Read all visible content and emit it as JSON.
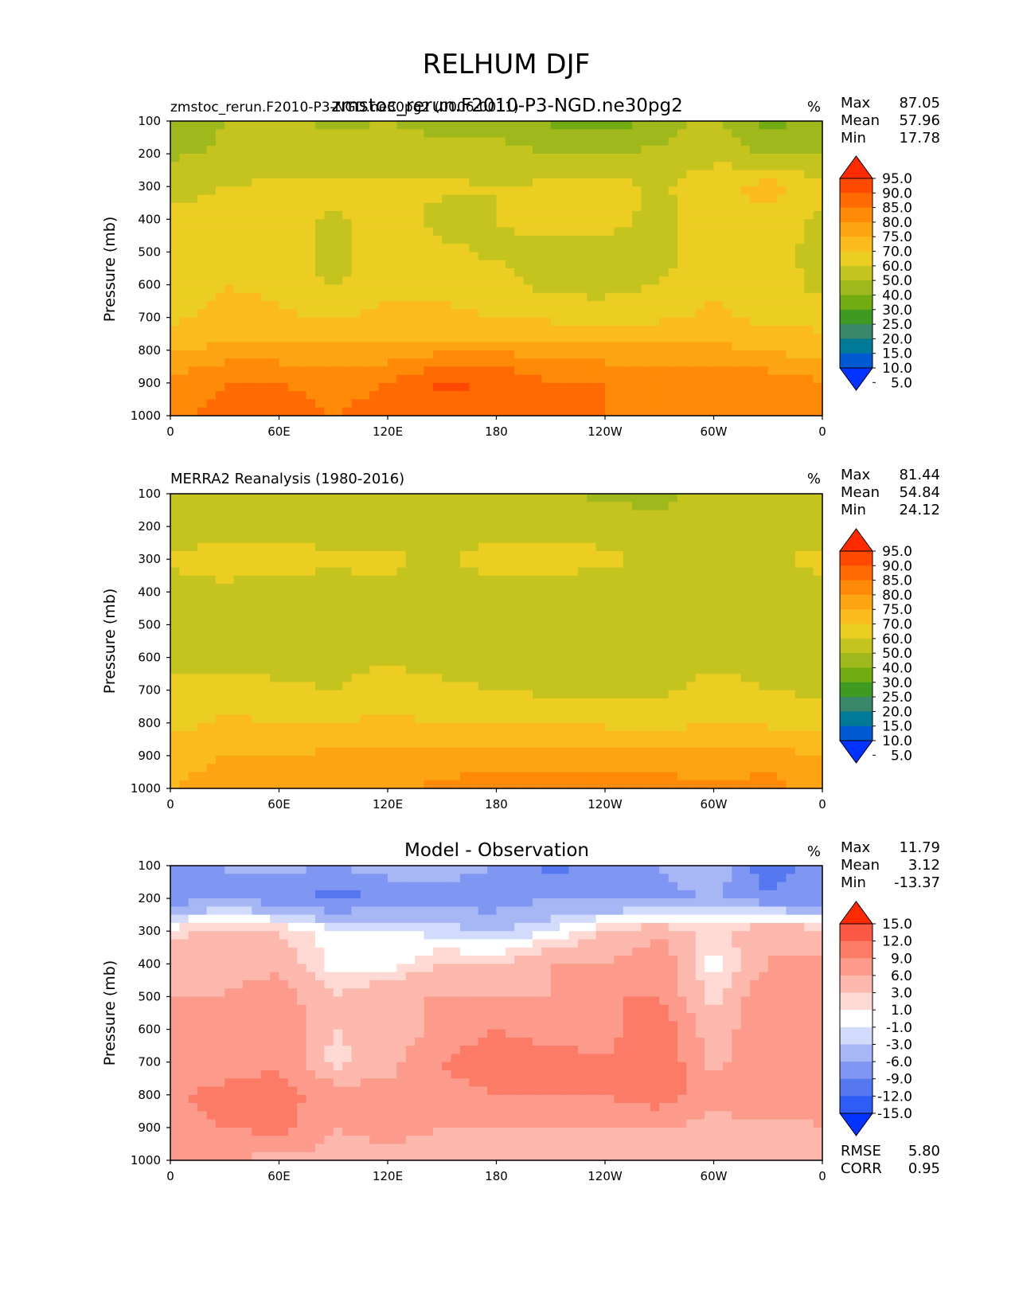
{
  "figure": {
    "title": "RELHUM DJF"
  },
  "colors": {
    "abs_levels": [
      "#0033ff",
      "#0059d1",
      "#007a96",
      "#38876a",
      "#3f9a22",
      "#72ac12",
      "#9fb81c",
      "#c5c41e",
      "#eccd22",
      "#fcbb1d",
      "#fda412",
      "#ff8a07",
      "#ff6a02",
      "#ff4800",
      "#ff2a00"
    ],
    "diff_levels": [
      "#0033ff",
      "#2f5cf6",
      "#5578f0",
      "#7f97f2",
      "#a7b7f6",
      "#d2dbfb",
      "#ffffff",
      "#ffd9d4",
      "#fdb8ad",
      "#fc9b8c",
      "#fc7b66",
      "#fa5a45",
      "#ff2a00"
    ]
  },
  "chart_data": [
    {
      "type": "heatmap",
      "panel_id": "test",
      "title_left": "zmstoc_rerun.F2010-P3-NGD.ne30pg2 (0006-0011)",
      "title_center": "zmstoc_rerun.F2010-P3-NGD.ne30pg2",
      "units": "%",
      "stats": {
        "max": "87.05",
        "mean": "57.96",
        "min": "17.78"
      },
      "xlabel": "",
      "ylabel": "Pressure (mb)",
      "xlim": [
        0,
        360
      ],
      "ylim": [
        1000,
        100
      ],
      "x_ticks": [
        "0",
        "60E",
        "120E",
        "180",
        "120W",
        "60W",
        "0"
      ],
      "y_ticks": [
        "100",
        "200",
        "300",
        "400",
        "500",
        "600",
        "700",
        "800",
        "900",
        "1000"
      ],
      "colorbar": {
        "extend": "both",
        "levels": [
          "95.0",
          "90.0",
          "85.0",
          "80.0",
          "75.0",
          "70.0",
          "60.0",
          "50.0",
          "40.0",
          "30.0",
          "25.0",
          "20.0",
          "15.0",
          "10.0",
          "5.0"
        ]
      },
      "pressure": [
        100,
        200,
        300,
        400,
        500,
        600,
        700,
        800,
        900,
        1000
      ],
      "longitude": [
        0,
        30,
        60,
        90,
        120,
        150,
        180,
        210,
        240,
        270,
        300,
        330,
        360
      ],
      "values": [
        [
          32,
          40,
          42,
          38,
          40,
          36,
          36,
          28,
          24,
          34,
          44,
          24,
          36
        ],
        [
          38,
          42,
          44,
          44,
          44,
          44,
          44,
          40,
          40,
          42,
          46,
          40,
          40
        ],
        [
          46,
          50,
          52,
          53,
          52,
          52,
          50,
          52,
          54,
          48,
          58,
          64,
          52
        ],
        [
          52,
          55,
          56,
          48,
          55,
          46,
          50,
          55,
          55,
          46,
          56,
          56,
          48
        ],
        [
          50,
          56,
          56,
          46,
          56,
          52,
          48,
          46,
          44,
          46,
          56,
          55,
          46
        ],
        [
          52,
          60,
          58,
          48,
          58,
          58,
          55,
          46,
          46,
          50,
          58,
          56,
          46
        ],
        [
          58,
          63,
          62,
          58,
          63,
          62,
          60,
          58,
          56,
          58,
          62,
          57,
          56
        ],
        [
          70,
          72,
          72,
          72,
          72,
          74,
          74,
          73,
          72,
          72,
          72,
          70,
          66
        ],
        [
          76,
          80,
          80,
          78,
          80,
          86,
          85,
          80,
          80,
          78,
          80,
          78,
          76
        ],
        [
          78,
          82,
          83,
          80,
          82,
          82,
          82,
          80,
          80,
          78,
          80,
          78,
          76
        ]
      ]
    },
    {
      "type": "heatmap",
      "panel_id": "ref",
      "title_left": "MERRA2 Reanalysis (1980-2016)",
      "title_center": "",
      "units": "%",
      "stats": {
        "max": "81.44",
        "mean": "54.84",
        "min": "24.12"
      },
      "xlabel": "",
      "ylabel": "Pressure (mb)",
      "xlim": [
        0,
        360
      ],
      "ylim": [
        1000,
        100
      ],
      "x_ticks": [
        "0",
        "60E",
        "120E",
        "180",
        "120W",
        "60W",
        "0"
      ],
      "y_ticks": [
        "100",
        "200",
        "300",
        "400",
        "500",
        "600",
        "700",
        "800",
        "900",
        "1000"
      ],
      "colorbar": {
        "extend": "both",
        "levels": [
          "95.0",
          "90.0",
          "85.0",
          "80.0",
          "75.0",
          "70.0",
          "60.0",
          "50.0",
          "40.0",
          "30.0",
          "25.0",
          "20.0",
          "15.0",
          "10.0",
          "5.0"
        ]
      },
      "pressure": [
        100,
        200,
        300,
        400,
        500,
        600,
        700,
        800,
        900,
        1000
      ],
      "longitude": [
        0,
        30,
        60,
        90,
        120,
        150,
        180,
        210,
        240,
        270,
        300,
        330,
        360
      ],
      "values": [
        [
          42,
          44,
          44,
          44,
          44,
          44,
          44,
          42,
          38,
          36,
          44,
          44,
          42
        ],
        [
          44,
          46,
          46,
          46,
          46,
          46,
          46,
          46,
          46,
          44,
          46,
          46,
          46
        ],
        [
          52,
          54,
          53,
          52,
          52,
          48,
          55,
          54,
          52,
          48,
          50,
          49,
          52
        ],
        [
          46,
          48,
          46,
          46,
          48,
          46,
          46,
          46,
          44,
          43,
          50,
          46,
          48
        ],
        [
          45,
          44,
          44,
          44,
          47,
          46,
          45,
          46,
          40,
          40,
          47,
          44,
          44
        ],
        [
          48,
          44,
          46,
          46,
          48,
          46,
          44,
          42,
          42,
          42,
          48,
          44,
          46
        ],
        [
          52,
          56,
          52,
          50,
          56,
          52,
          50,
          48,
          48,
          48,
          54,
          50,
          48
        ],
        [
          56,
          62,
          60,
          60,
          62,
          60,
          60,
          58,
          58,
          56,
          60,
          58,
          56
        ],
        [
          66,
          70,
          70,
          72,
          72,
          73,
          74,
          74,
          74,
          74,
          72,
          74,
          70
        ],
        [
          70,
          74,
          74,
          74,
          74,
          76,
          76,
          76,
          76,
          76,
          76,
          76,
          74
        ]
      ]
    },
    {
      "type": "heatmap",
      "panel_id": "diff",
      "title_left": "",
      "title_center": "Model - Observation",
      "units": "%",
      "stats": {
        "max": "11.79",
        "mean": "3.12",
        "min": "-13.37"
      },
      "metrics": {
        "rmse": "5.80",
        "corr": "0.95"
      },
      "xlabel": "",
      "ylabel": "Pressure (mb)",
      "xlim": [
        0,
        360
      ],
      "ylim": [
        1000,
        100
      ],
      "x_ticks": [
        "0",
        "60E",
        "120E",
        "180",
        "120W",
        "60W",
        "0"
      ],
      "y_ticks": [
        "100",
        "200",
        "300",
        "400",
        "500",
        "600",
        "700",
        "800",
        "900",
        "1000"
      ],
      "colorbar": {
        "extend": "both",
        "levels": [
          "15.0",
          "12.0",
          "9.0",
          "6.0",
          "3.0",
          "1.0",
          "-1.0",
          "-3.0",
          "-6.0",
          "-9.0",
          "-12.0",
          "-15.0"
        ]
      },
      "pressure": [
        100,
        200,
        300,
        400,
        500,
        600,
        700,
        800,
        900,
        1000
      ],
      "longitude": [
        0,
        30,
        60,
        90,
        120,
        150,
        180,
        210,
        240,
        270,
        300,
        330,
        360
      ],
      "values": [
        [
          -7,
          -6,
          -5,
          -6,
          -4,
          -4,
          -6,
          -10,
          -8,
          -6,
          -3,
          -12,
          -6
        ],
        [
          -8,
          -6,
          -8,
          -10,
          -9,
          -8,
          -8,
          -6,
          -7,
          -7,
          -6,
          -8,
          -8
        ],
        [
          2,
          4,
          3,
          0,
          0,
          -2,
          -3,
          -1,
          3,
          5,
          2,
          6,
          4
        ],
        [
          5,
          5,
          5,
          0,
          0,
          3,
          3,
          6,
          6,
          9,
          0,
          6,
          7
        ],
        [
          6,
          6,
          8,
          3,
          6,
          6,
          6,
          6,
          9,
          9,
          2,
          9,
          8
        ],
        [
          6,
          6,
          9,
          3,
          4,
          7,
          9,
          7,
          8,
          11,
          4,
          9,
          8
        ],
        [
          6,
          6,
          9,
          2,
          5,
          9,
          11,
          11,
          9,
          12,
          5,
          9,
          8
        ],
        [
          8,
          11,
          10,
          8,
          7,
          8,
          9,
          9,
          9,
          11,
          7,
          9,
          7
        ],
        [
          6,
          9,
          10,
          6,
          7,
          6,
          6,
          6,
          6,
          6,
          5,
          5,
          6
        ],
        [
          6,
          6,
          5,
          5,
          5,
          5,
          5,
          5,
          5,
          5,
          3,
          5,
          4
        ]
      ]
    }
  ]
}
